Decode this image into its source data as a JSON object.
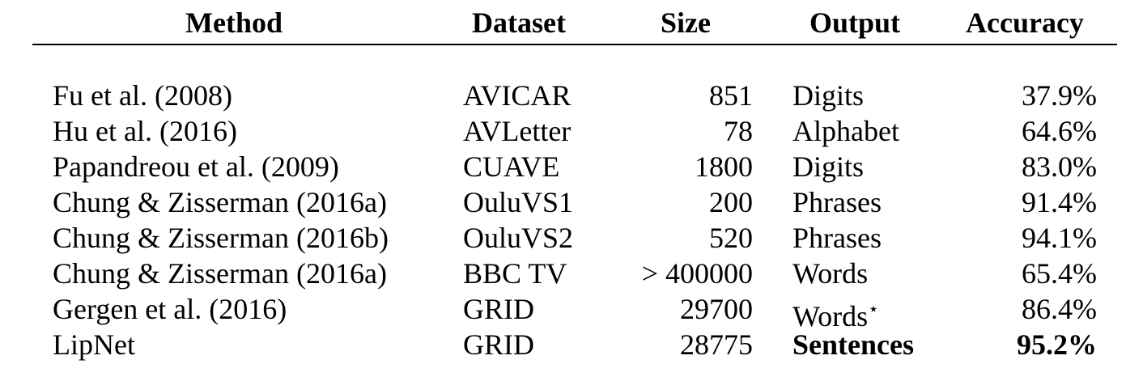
{
  "headers": {
    "method": "Method",
    "dataset": "Dataset",
    "size": "Size",
    "output": "Output",
    "accuracy": "Accuracy"
  },
  "rows": [
    {
      "method": "Fu et al. (2008)",
      "dataset": "AVICAR",
      "size": "851",
      "output": "Digits",
      "accuracy": "37.9%"
    },
    {
      "method": "Hu et al. (2016)",
      "dataset": "AVLetter",
      "size": "78",
      "output": "Alphabet",
      "accuracy": "64.6%"
    },
    {
      "method": "Papandreou et al. (2009)",
      "dataset": "CUAVE",
      "size": "1800",
      "output": "Digits",
      "accuracy": "83.0%"
    },
    {
      "method": "Chung & Zisserman (2016a)",
      "dataset": "OuluVS1",
      "size": "200",
      "output": "Phrases",
      "accuracy": "91.4%"
    },
    {
      "method": "Chung & Zisserman (2016b)",
      "dataset": "OuluVS2",
      "size": "520",
      "output": "Phrases",
      "accuracy": "94.1%"
    },
    {
      "method": "Chung & Zisserman (2016a)",
      "dataset": "BBC TV",
      "size": "> 400000",
      "output": "Words",
      "accuracy": "65.4%"
    },
    {
      "method": "Gergen et al. (2016)",
      "dataset": "GRID",
      "size": "29700",
      "output": "Words",
      "output_mark": "⋆",
      "accuracy": "86.4%"
    },
    {
      "method": "LipNet",
      "dataset": "GRID",
      "size": "28775",
      "output": "Sentences",
      "accuracy": "95.2%",
      "bold": true
    }
  ]
}
